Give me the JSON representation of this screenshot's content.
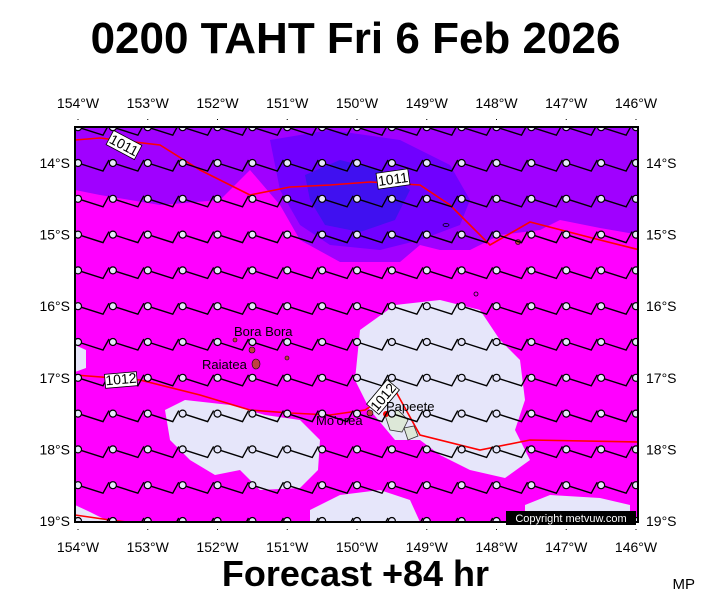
{
  "title": "0200 TAHT Fri 6 Feb 2026",
  "footer": "Forecast +84 hr",
  "author_mark": "MP",
  "copyright": "Copyright metvuw.com",
  "map": {
    "lon_labels": [
      "154°W",
      "153°W",
      "152°W",
      "151°W",
      "150°W",
      "149°W",
      "148°W",
      "147°W",
      "146°W"
    ],
    "lat_labels": [
      "14°S",
      "15°S",
      "16°S",
      "17°S",
      "18°S",
      "19°S"
    ],
    "places": [
      {
        "name": "Bora Bora",
        "lon": -151.75,
        "lat": -16.5
      },
      {
        "name": "Raiatea",
        "lon": -151.45,
        "lat": -16.8
      },
      {
        "name": "Mo'orea",
        "lon": -149.85,
        "lat": -17.53
      },
      {
        "name": "Papeete",
        "lon": -149.57,
        "lat": -17.53
      }
    ],
    "isobar_labels": [
      "1011",
      "1011",
      "1012",
      "1012"
    ],
    "colors": {
      "magenta": "#ff00ff",
      "violet": "#a000ff",
      "indigo": "#7000ff",
      "blue": "#4010f0",
      "lavender": "#e6e6fa",
      "isobar": "#ff0000",
      "land": "#dde8d8"
    },
    "wind_barbs": "uniform light east-southeasterly barbs on half-degree grid"
  }
}
